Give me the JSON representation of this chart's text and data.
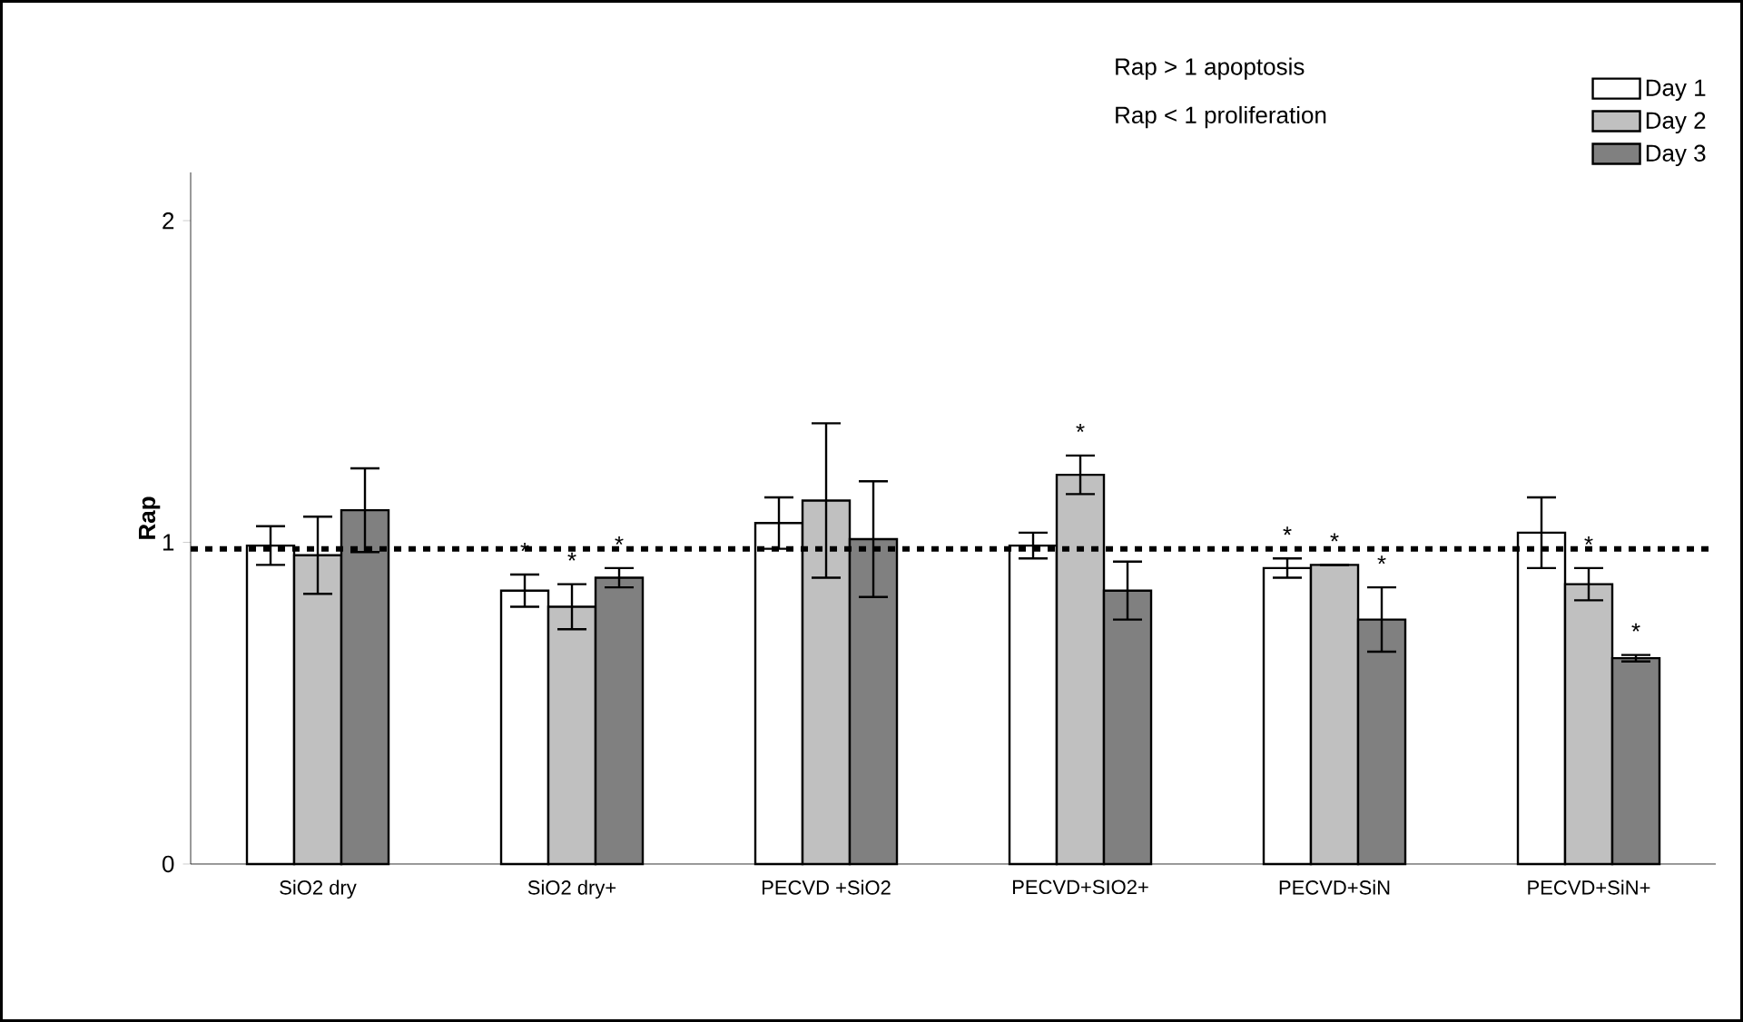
{
  "chart_data": {
    "type": "bar",
    "ylabel": "Rap",
    "categories": [
      "SiO2 dry",
      "SiO2 dry+",
      "PECVD +SiO2",
      "PECVD+SIO2+",
      "PECVD+SiN",
      "PECVD+SiN+"
    ],
    "series": [
      {
        "name": "Day 1",
        "color": "#ffffff",
        "values": [
          0.99,
          0.85,
          1.06,
          0.99,
          0.92,
          1.03
        ],
        "errors": [
          0.06,
          0.05,
          0.08,
          0.04,
          0.03,
          0.11
        ],
        "value_labels": [
          null,
          "*",
          null,
          null,
          "*",
          null
        ]
      },
      {
        "name": "Day 2",
        "color": "#c0c0c0",
        "values": [
          0.96,
          0.8,
          1.13,
          1.21,
          0.93,
          0.87
        ],
        "errors": [
          0.12,
          0.07,
          0.24,
          0.06,
          0,
          0.05
        ],
        "value_labels": [
          null,
          "*",
          null,
          "*",
          "*",
          "*"
        ]
      },
      {
        "name": "Day 3",
        "color": "#808080",
        "values": [
          1.1,
          0.89,
          1.01,
          0.85,
          0.76,
          0.64
        ],
        "errors": [
          0.13,
          0.03,
          0.18,
          0.09,
          0.1,
          0.01
        ],
        "value_labels": [
          null,
          "*",
          null,
          null,
          "*",
          "*"
        ]
      }
    ],
    "ylim": [
      0,
      2.15
    ],
    "yticks": [
      0,
      1,
      2
    ],
    "grid": false,
    "legend": "top right",
    "ref_lines": [
      {
        "axis": "y",
        "value": 0.98,
        "line_style": "dotted"
      }
    ],
    "annotations": [
      "Rap > 1 apoptosis",
      "Rap < 1 proliferation"
    ]
  }
}
